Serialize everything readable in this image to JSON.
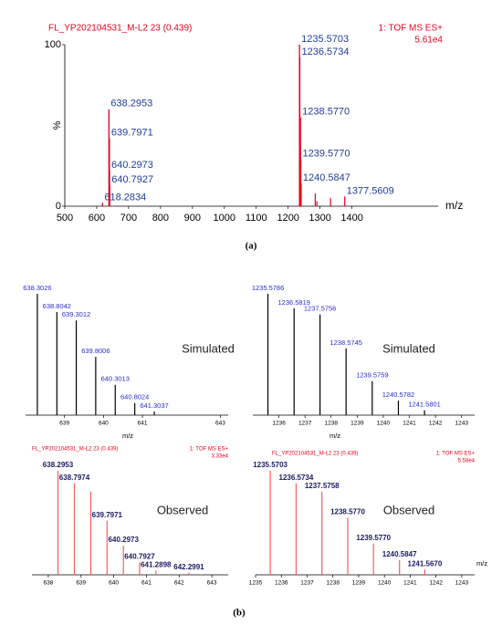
{
  "figure": {
    "panel_labels": [
      "(a)",
      "(b)"
    ]
  },
  "chart_data": [
    {
      "type": "stem",
      "title": "FL_YP202104531_M-L2 23 (0.439)",
      "instrument": "1: TOF MS ES+",
      "intensity": "5.61e4",
      "xlabel": "m/z",
      "ylabel": "%",
      "xlim": [
        500,
        1670
      ],
      "ylim": [
        0,
        100
      ],
      "xticks": [
        500,
        600,
        700,
        800,
        900,
        1000,
        1100,
        1200,
        1300,
        1400
      ],
      "yticks": [
        0,
        100
      ],
      "color": "#e8001c",
      "label_color": "#1f3d99",
      "x": [
        618.2834,
        638.2953,
        639.7971,
        640.2973,
        640.7927,
        1235.5703,
        1236.5734,
        1238.577,
        1239.577,
        1240.5847,
        1377.5609
      ],
      "values": [
        2,
        60,
        42,
        22,
        13,
        100,
        92,
        55,
        29,
        14,
        6
      ],
      "peak_labels": [
        "618.2834",
        "638.2953",
        "639.7971",
        "640.2973",
        "640.7927",
        "1235.5703",
        "1236.5734",
        "1238.5770",
        "1239.5770",
        "1240.5847",
        "1377.5609"
      ],
      "minor_x": [
        1285,
        1290,
        1333
      ],
      "minor_values": [
        8,
        3,
        5
      ]
    },
    {
      "type": "stem",
      "annotation": "Simulated",
      "xlabel": "m/z",
      "xlim": [
        638,
        643.2
      ],
      "ylim": [
        0,
        100
      ],
      "xticks": [
        639,
        640,
        641,
        643
      ],
      "color": "#000000",
      "label_color": "#2b2bd0",
      "x": [
        638.3026,
        638.8042,
        639.3012,
        639.8006,
        640.3013,
        640.8024,
        641.3037
      ],
      "values": [
        100,
        85,
        78,
        48,
        25,
        10,
        3
      ],
      "peak_labels": [
        "638.3026",
        "638.8042",
        "639.3012",
        "639.8006",
        "640.3013",
        "640.8024",
        "641.3037"
      ]
    },
    {
      "type": "stem",
      "annotation": "Simulated",
      "xlabel": "m/z",
      "xlim": [
        1235,
        1243.5
      ],
      "ylim": [
        0,
        100
      ],
      "xticks": [
        1236,
        1237,
        1238,
        1239,
        1240,
        1241,
        1242,
        1243
      ],
      "color": "#000000",
      "label_color": "#2b2bd0",
      "x": [
        1235.5786,
        1236.5819,
        1237.5756,
        1238.5745,
        1239.5759,
        1240.5782,
        1241.5801
      ],
      "values": [
        100,
        88,
        83,
        55,
        28,
        12,
        4
      ],
      "peak_labels": [
        "1235.5786",
        "1236.5819",
        "1237.5756",
        "1238.5745",
        "1239.5759",
        "1240.5782",
        "1241.5801"
      ]
    },
    {
      "type": "stem",
      "title": "FL_YP202104531_M-L2 23 (0.439)",
      "instrument": "1: TOF MS ES+",
      "intensity": "3.33e4",
      "annotation": "Observed",
      "xlim": [
        637.5,
        643.5
      ],
      "ylim": [
        0,
        100
      ],
      "xticks": [
        638,
        639,
        640,
        641,
        642,
        643
      ],
      "color": "#ff5a5a",
      "label_color": "#1a1a66",
      "x": [
        638.2953,
        638.7974,
        639.7971,
        640.2973,
        640.7927,
        641.2898,
        642.2991
      ],
      "values": [
        100,
        88,
        52,
        28,
        12,
        4,
        2
      ],
      "peak_labels": [
        "638.2953",
        "638.7974",
        "639.7971",
        "640.2973",
        "640.7927",
        "641.2898",
        "642.2991"
      ],
      "minor_x": [
        639.299
      ],
      "minor_values": [
        80
      ]
    },
    {
      "type": "stem",
      "title": "FL_YP202104531_M-L2 23 (0.439)",
      "instrument": "1: TOF MS ES+",
      "intensity": "5.58e4",
      "annotation": "Observed",
      "xlabel": "m/z",
      "xlim": [
        1235,
        1243.5
      ],
      "ylim": [
        0,
        100
      ],
      "xticks": [
        1235,
        1236,
        1237,
        1238,
        1239,
        1240,
        1241,
        1242,
        1243
      ],
      "color": "#ff5a5a",
      "label_color": "#1a1a66",
      "x": [
        1235.5703,
        1236.5734,
        1237.5758,
        1238.577,
        1239.577,
        1240.5847,
        1241.567
      ],
      "values": [
        100,
        88,
        80,
        55,
        30,
        14,
        5
      ],
      "peak_labels": [
        "1235.5703",
        "1236.5734",
        "1237.5758",
        "1238.5770",
        "1239.5770",
        "1240.5847",
        "1241.5670"
      ]
    }
  ]
}
